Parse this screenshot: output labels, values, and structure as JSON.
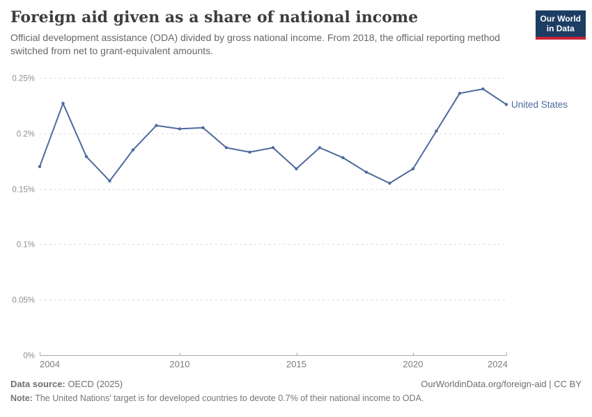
{
  "header": {
    "title": "Foreign aid given as a share of national income",
    "subtitle": "Official development assistance (ODA) divided by gross national income. From 2018, the official reporting method switched from net to grant-equivalent amounts."
  },
  "logo": {
    "line1": "Our World",
    "line2": "in Data",
    "bg": "#1D3D63",
    "accent": "#C72435"
  },
  "chart_data": {
    "type": "line",
    "title": "Foreign aid given as a share of national income",
    "x": [
      2004,
      2005,
      2006,
      2007,
      2008,
      2009,
      2010,
      2011,
      2012,
      2013,
      2014,
      2015,
      2016,
      2017,
      2018,
      2019,
      2020,
      2021,
      2022,
      2023,
      2024
    ],
    "series": [
      {
        "name": "United States",
        "color": "#4C6A9C",
        "values": [
          0.17,
          0.227,
          0.179,
          0.157,
          0.185,
          0.207,
          0.204,
          0.205,
          0.187,
          0.183,
          0.187,
          0.168,
          0.187,
          0.178,
          0.165,
          0.155,
          0.168,
          0.202,
          0.236,
          0.24,
          0.226
        ]
      }
    ],
    "ylabel": "",
    "xlabel": "",
    "ylim": [
      0,
      0.25
    ],
    "yticks": [
      {
        "value": 0,
        "label": "0%"
      },
      {
        "value": 0.05,
        "label": "0.05%"
      },
      {
        "value": 0.1,
        "label": "0.1%"
      },
      {
        "value": 0.15,
        "label": "0.15%"
      },
      {
        "value": 0.2,
        "label": "0.2%"
      },
      {
        "value": 0.25,
        "label": "0.25%"
      }
    ],
    "xticks": [
      2004,
      2010,
      2015,
      2020,
      2024
    ],
    "grid": "horizontal-dashed",
    "legend_position": "end-of-line-label",
    "gridline_color": "#dcdcdc",
    "axis_color": "#a8a8a8"
  },
  "footer": {
    "datasource_label": "Data source:",
    "datasource_value": "OECD (2025)",
    "credit": "OurWorldinData.org/foreign-aid | CC BY",
    "note_label": "Note:",
    "note_value": "The United Nations' target is for developed countries to devote 0.7% of their national income to ODA."
  }
}
